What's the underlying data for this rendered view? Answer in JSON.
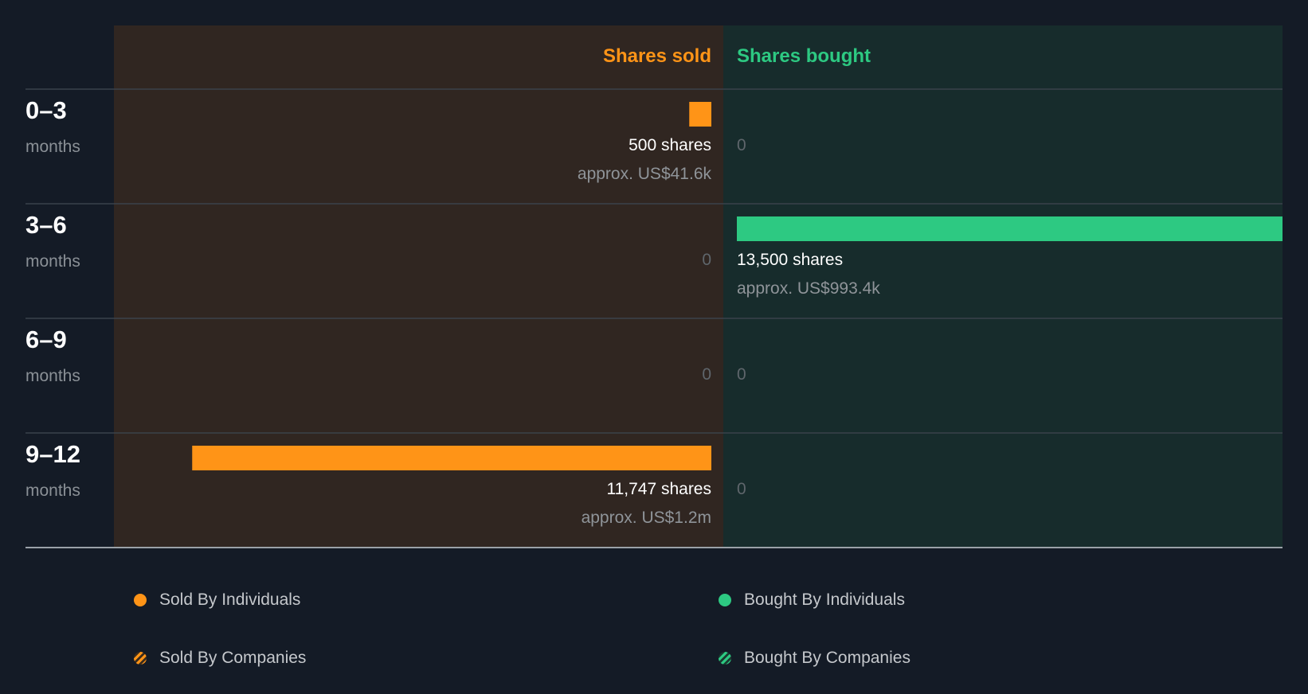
{
  "chart_data": {
    "type": "bar",
    "title": "",
    "column_headers": {
      "sold": "Shares sold",
      "bought": "Shares bought"
    },
    "periods": [
      {
        "range": "0–3",
        "unit": "months"
      },
      {
        "range": "3–6",
        "unit": "months"
      },
      {
        "range": "6–9",
        "unit": "months"
      },
      {
        "range": "9–12",
        "unit": "months"
      }
    ],
    "series": [
      {
        "name": "Shares sold",
        "values": [
          500,
          0,
          0,
          11747
        ],
        "labels": [
          "500 shares",
          "0",
          "0",
          "11,747 shares"
        ],
        "approx": [
          "approx. US$41.6k",
          "",
          "",
          "approx. US$1.2m"
        ]
      },
      {
        "name": "Shares bought",
        "values": [
          0,
          13500,
          0,
          0
        ],
        "labels": [
          "0",
          "13,500 shares",
          "0",
          "0"
        ],
        "approx": [
          "",
          "approx. US$993.4k",
          "",
          ""
        ]
      }
    ],
    "max_value": 13500,
    "legend": {
      "sold_individuals": "Sold By Individuals",
      "bought_individuals": "Bought By Individuals",
      "sold_companies": "Sold By Companies",
      "bought_companies": "Bought By Companies"
    },
    "colors": {
      "sold": "#ff9417",
      "bought": "#2dc982",
      "sold_bg": "#302621",
      "bought_bg": "#172c2c",
      "page_bg": "#141b26"
    }
  }
}
